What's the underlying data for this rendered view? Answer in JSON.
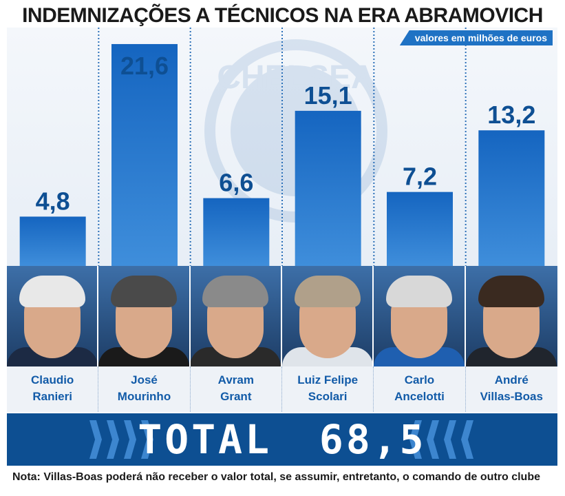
{
  "title": "INDEMNIZAÇÕES A TÉCNICOS NA ERA ABRAMOVICH",
  "subtitle": "valores em milhões de euros",
  "watermark": "CHELSEA",
  "chart_data": {
    "type": "bar",
    "title": "INDEMNIZAÇÕES A TÉCNICOS NA ERA ABRAMOVICH",
    "subtitle": "valores em milhões de euros",
    "categories": [
      "Claudio Ranieri",
      "José Mourinho",
      "Avram Grant",
      "Luiz Felipe Scolari",
      "Carlo Ancelotti",
      "André Villas-Boas"
    ],
    "values": [
      4.8,
      21.6,
      6.6,
      15.1,
      7.2,
      13.2
    ],
    "value_labels": [
      "4,8",
      "21,6",
      "6,6",
      "15,1",
      "7,2",
      "13,2"
    ],
    "ylim": [
      0,
      22
    ],
    "grid": false,
    "bar_color": "#1f72c4"
  },
  "coaches": [
    {
      "first": "Claudio",
      "last": "Ranieri",
      "hair": "#e8e8e8",
      "shirt": "#1c2a44"
    },
    {
      "first": "José",
      "last": "Mourinho",
      "hair": "#4a4a4a",
      "shirt": "#1a1a1a"
    },
    {
      "first": "Avram",
      "last": "Grant",
      "hair": "#8a8a8a",
      "shirt": "#2a2a2a"
    },
    {
      "first": "Luiz Felipe",
      "last": "Scolari",
      "hair": "#b0a08a",
      "shirt": "#dfe4ea"
    },
    {
      "first": "Carlo",
      "last": "Ancelotti",
      "hair": "#d8d8d8",
      "shirt": "#1f5fb0"
    },
    {
      "first": "André",
      "last": "Villas-Boas",
      "hair": "#3a2a20",
      "shirt": "#20252d"
    }
  ],
  "total": {
    "label": "TOTAL",
    "value": "68,5"
  },
  "note": "Nota: Villas-Boas poderá não receber o valor total, se assumir, entretanto, o comando de outro clube",
  "colors": {
    "primary": "#1f72c4",
    "dark": "#0d4f92",
    "name_text": "#125ba8"
  }
}
